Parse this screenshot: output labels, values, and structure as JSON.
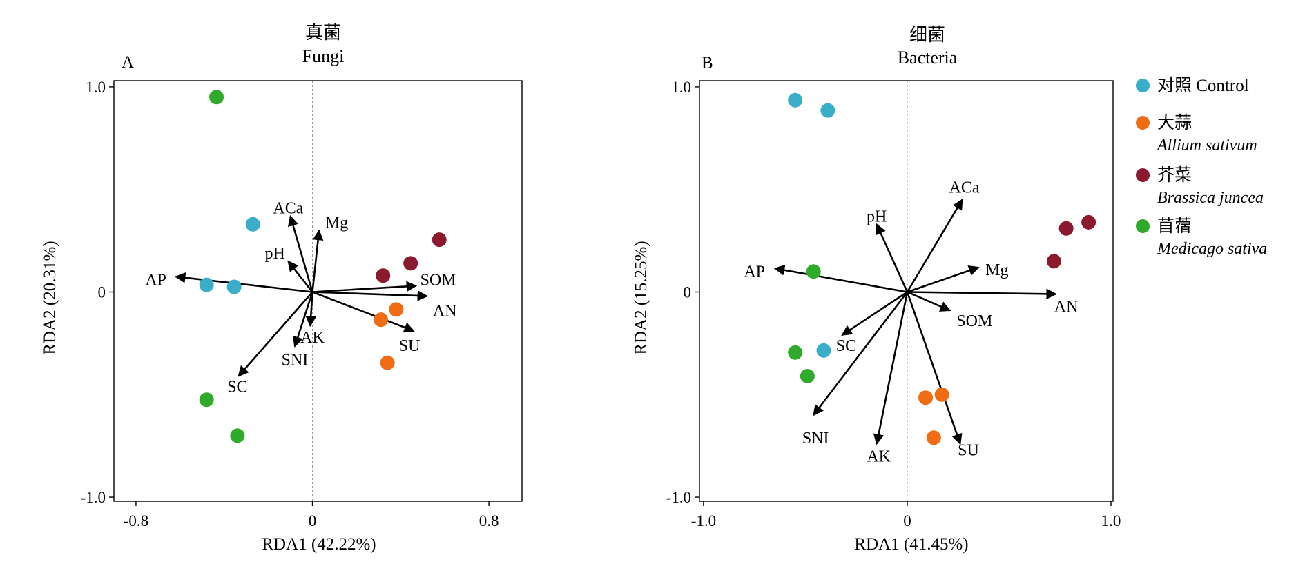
{
  "legend": {
    "items": [
      {
        "label": "对照 Control",
        "color": "#3aaec8"
      },
      {
        "label": "大蒜",
        "sublabel": "Allium sativum",
        "color": "#ef6c14"
      },
      {
        "label": "芥菜",
        "sublabel": "Brassica juncea",
        "color": "#8b1a2f"
      },
      {
        "label": "苜蓿",
        "sublabel": "Medicago sativa",
        "color": "#2faa2a"
      }
    ]
  },
  "chart_data": [
    {
      "type": "scatter",
      "panel_label": "A",
      "title_cn": "真菌",
      "title": "Fungi",
      "xlabel": "RDA1 (42.22%)",
      "ylabel": "RDA2 (20.31%)",
      "xlim": [
        -0.9,
        0.95
      ],
      "ylim": [
        -1.02,
        1.03
      ],
      "xticks": [
        {
          "v": -0.8,
          "label": "-0.8"
        },
        {
          "v": 0,
          "label": "0"
        },
        {
          "v": 0.8,
          "label": "0.8"
        }
      ],
      "yticks": [
        {
          "v": 1.0,
          "label": "1.0"
        },
        {
          "v": 0,
          "label": "0"
        },
        {
          "v": -1.0,
          "label": "-1.0"
        }
      ],
      "points": [
        {
          "group": 0,
          "x": -0.27,
          "y": 0.33
        },
        {
          "group": 0,
          "x": -0.48,
          "y": 0.035
        },
        {
          "group": 0,
          "x": -0.355,
          "y": 0.025
        },
        {
          "group": 1,
          "x": 0.38,
          "y": -0.085
        },
        {
          "group": 1,
          "x": 0.31,
          "y": -0.135
        },
        {
          "group": 1,
          "x": 0.34,
          "y": -0.345
        },
        {
          "group": 2,
          "x": 0.575,
          "y": 0.255
        },
        {
          "group": 2,
          "x": 0.445,
          "y": 0.14
        },
        {
          "group": 2,
          "x": 0.32,
          "y": 0.08
        },
        {
          "group": 3,
          "x": -0.435,
          "y": 0.95
        },
        {
          "group": 3,
          "x": -0.48,
          "y": -0.525
        },
        {
          "group": 3,
          "x": -0.34,
          "y": -0.7
        }
      ],
      "vectors": [
        {
          "name": "ACa",
          "x": -0.1,
          "y": 0.37,
          "lx": -0.11,
          "ly": 0.41
        },
        {
          "name": "Mg",
          "x": 0.03,
          "y": 0.3,
          "lx": 0.11,
          "ly": 0.34
        },
        {
          "name": "pH",
          "x": -0.11,
          "y": 0.15,
          "lx": -0.17,
          "ly": 0.19
        },
        {
          "name": "AP",
          "x": -0.62,
          "y": 0.075,
          "lx": -0.71,
          "ly": 0.06
        },
        {
          "name": "SOM",
          "x": 0.47,
          "y": 0.03,
          "lx": 0.57,
          "ly": 0.06
        },
        {
          "name": "AN",
          "x": 0.52,
          "y": -0.02,
          "lx": 0.6,
          "ly": -0.09
        },
        {
          "name": "SU",
          "x": 0.46,
          "y": -0.19,
          "lx": 0.44,
          "ly": -0.26
        },
        {
          "name": "AK",
          "x": -0.01,
          "y": -0.165,
          "lx": 0.0,
          "ly": -0.22
        },
        {
          "name": "SNI",
          "x": -0.08,
          "y": -0.265,
          "lx": -0.08,
          "ly": -0.33
        },
        {
          "name": "SC",
          "x": -0.335,
          "y": -0.41,
          "lx": -0.34,
          "ly": -0.46
        }
      ]
    },
    {
      "type": "scatter",
      "panel_label": "B",
      "title_cn": "细菌",
      "title": "Bacteria",
      "xlabel": "RDA1 (41.45%)",
      "ylabel": "RDA2 (15.25%)",
      "xlim": [
        -1.02,
        1.01
      ],
      "ylim": [
        -1.02,
        1.03
      ],
      "xticks": [
        {
          "v": -1.0,
          "label": "-1.0"
        },
        {
          "v": 0,
          "label": "0"
        },
        {
          "v": 1.0,
          "label": "1.0"
        }
      ],
      "yticks": [
        {
          "v": 1.0,
          "label": "1.0"
        },
        {
          "v": 0,
          "label": "0"
        },
        {
          "v": -1.0,
          "label": "-1.0"
        }
      ],
      "points": [
        {
          "group": 0,
          "x": -0.55,
          "y": 0.935
        },
        {
          "group": 0,
          "x": -0.39,
          "y": 0.885
        },
        {
          "group": 0,
          "x": -0.41,
          "y": -0.285
        },
        {
          "group": 1,
          "x": 0.17,
          "y": -0.5
        },
        {
          "group": 1,
          "x": 0.09,
          "y": -0.515
        },
        {
          "group": 1,
          "x": 0.13,
          "y": -0.71
        },
        {
          "group": 2,
          "x": 0.89,
          "y": 0.34
        },
        {
          "group": 2,
          "x": 0.78,
          "y": 0.31
        },
        {
          "group": 2,
          "x": 0.72,
          "y": 0.15
        },
        {
          "group": 3,
          "x": -0.46,
          "y": 0.1
        },
        {
          "group": 3,
          "x": -0.55,
          "y": -0.295
        },
        {
          "group": 3,
          "x": -0.49,
          "y": -0.41
        }
      ],
      "vectors": [
        {
          "name": "ACa",
          "x": 0.27,
          "y": 0.45,
          "lx": 0.28,
          "ly": 0.51
        },
        {
          "name": "pH",
          "x": -0.15,
          "y": 0.33,
          "lx": -0.15,
          "ly": 0.37
        },
        {
          "name": "Mg",
          "x": 0.35,
          "y": 0.12,
          "lx": 0.44,
          "ly": 0.11
        },
        {
          "name": "AP",
          "x": -0.65,
          "y": 0.115,
          "lx": -0.75,
          "ly": 0.1
        },
        {
          "name": "AN",
          "x": 0.73,
          "y": -0.01,
          "lx": 0.78,
          "ly": -0.07
        },
        {
          "name": "SOM",
          "x": 0.21,
          "y": -0.09,
          "lx": 0.33,
          "ly": -0.14
        },
        {
          "name": "SC",
          "x": -0.32,
          "y": -0.21,
          "lx": -0.3,
          "ly": -0.26
        },
        {
          "name": "SNI",
          "x": -0.46,
          "y": -0.6,
          "lx": -0.45,
          "ly": -0.71
        },
        {
          "name": "AK",
          "x": -0.15,
          "y": -0.74,
          "lx": -0.14,
          "ly": -0.8
        },
        {
          "name": "SU",
          "x": 0.26,
          "y": -0.74,
          "lx": 0.3,
          "ly": -0.77
        }
      ]
    }
  ]
}
